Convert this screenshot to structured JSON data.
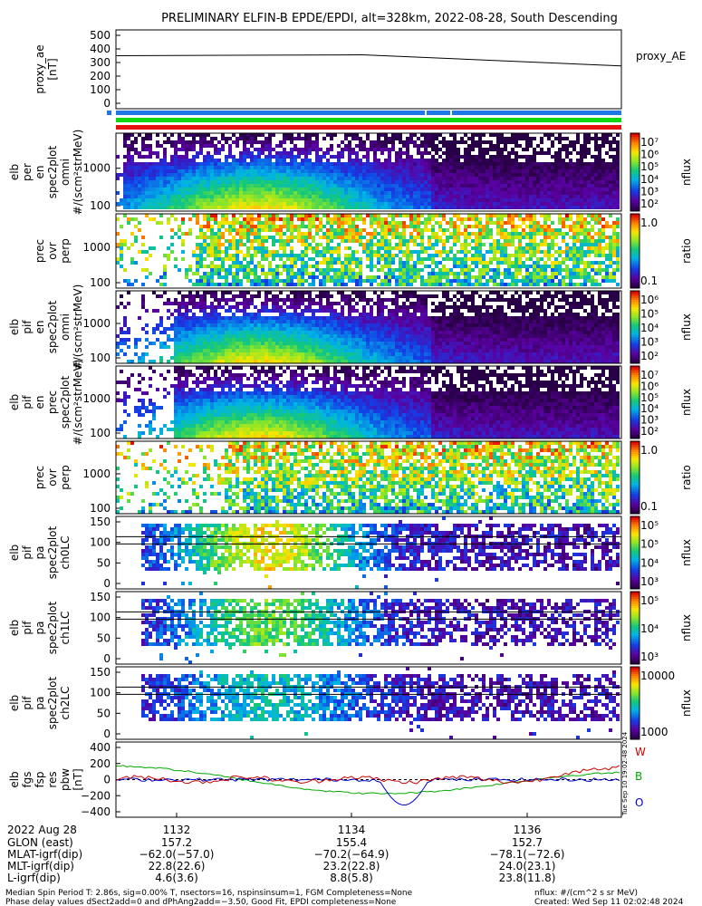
{
  "title": "PRELIMINARY ELFIN-B EPDE/EPDI, alt=328km, 2022-08-28, South Descending",
  "panels": [
    {
      "id": "ae",
      "kind": "line",
      "ylabel": [
        "proxy_ae",
        "[nT]"
      ],
      "ticks": [
        "500",
        "400",
        "300",
        "200",
        "100",
        "0"
      ],
      "tick_values": [
        500,
        400,
        300,
        200,
        100,
        0
      ],
      "legend": "proxy_AE"
    },
    {
      "id": "p1",
      "kind": "spec",
      "ylabel": [
        "elb",
        "per",
        "en",
        "spec2plot",
        "omni",
        "#/(scm²strMeV)"
      ],
      "ticks": [
        "1000",
        "100"
      ],
      "tick_values": [
        1000,
        100
      ],
      "cb_ticks": [
        "10⁷",
        "10⁶",
        "10⁵",
        "10⁴",
        "10³",
        "10²"
      ],
      "cb_label": "nflux"
    },
    {
      "id": "p2",
      "kind": "spec",
      "ylabel": [
        "prec",
        "ovr",
        "perp"
      ],
      "ticks": [
        "1000",
        "100"
      ],
      "tick_values": [
        1000,
        100
      ],
      "cb_ticks": [
        "1.0",
        "0.1"
      ],
      "cb_label": "ratio"
    },
    {
      "id": "p3",
      "kind": "spec",
      "ylabel": [
        "elb",
        "pif",
        "en",
        "spec2plot",
        "omni",
        "#/(scm²strMeV)"
      ],
      "ticks": [
        "1000",
        "100"
      ],
      "tick_values": [
        1000,
        100
      ],
      "cb_ticks": [
        "10⁶",
        "10⁵",
        "10⁴",
        "10³",
        "10²"
      ],
      "cb_label": "nflux"
    },
    {
      "id": "p4",
      "kind": "spec",
      "ylabel": [
        "elb",
        "pif",
        "en",
        "prec",
        "spec2plot",
        "#/(scm²strMeV)"
      ],
      "ticks": [
        "1000",
        "100"
      ],
      "tick_values": [
        1000,
        100
      ],
      "cb_ticks": [
        "10⁷",
        "10⁶",
        "10⁵",
        "10⁴",
        "10³",
        "10²"
      ],
      "cb_label": "nflux"
    },
    {
      "id": "p5",
      "kind": "spec",
      "ylabel": [
        "prec",
        "ovr",
        "perp"
      ],
      "ticks": [
        "1000",
        "100"
      ],
      "tick_values": [
        1000,
        100
      ],
      "cb_ticks": [
        "1.0",
        "0.1"
      ],
      "cb_label": "ratio"
    },
    {
      "id": "p6",
      "kind": "pa",
      "ylabel": [
        "elb",
        "pif",
        "pa",
        "spec2plot",
        "ch0LC"
      ],
      "ticks": [
        "150",
        "100",
        "50",
        "0"
      ],
      "tick_values": [
        150,
        100,
        50,
        0
      ],
      "cb_ticks": [
        "10⁵",
        "10⁵",
        "10⁴",
        "10³"
      ],
      "cb_label": "nflux"
    },
    {
      "id": "p7",
      "kind": "pa",
      "ylabel": [
        "elb",
        "pif",
        "pa",
        "spec2plot",
        "ch1LC"
      ],
      "ticks": [
        "150",
        "100",
        "50",
        "0"
      ],
      "tick_values": [
        150,
        100,
        50,
        0
      ],
      "cb_ticks": [
        "10⁵",
        "10⁴",
        "10³"
      ],
      "cb_label": "nflux"
    },
    {
      "id": "p8",
      "kind": "pa",
      "ylabel": [
        "elb",
        "pif",
        "pa",
        "spec2plot",
        "ch2LC"
      ],
      "ticks": [
        "150",
        "100",
        "50",
        "0"
      ],
      "tick_values": [
        150,
        100,
        50,
        0
      ],
      "cb_ticks": [
        "10000",
        "1000"
      ],
      "cb_label": "nflux"
    },
    {
      "id": "p9",
      "kind": "lines",
      "ylabel": [
        "elb",
        "fgs",
        "fsp",
        "res",
        "pbw",
        "[nT]"
      ],
      "ticks": [
        "400",
        "200",
        "0",
        "−200",
        "−400"
      ],
      "tick_values": [
        400,
        200,
        0,
        -200,
        -400
      ],
      "legend_w": "W",
      "legend_b": "B",
      "legend_o": "O"
    }
  ],
  "xaxis": {
    "date": "2022 Aug 28",
    "tick_labels": [
      "1132",
      "1134",
      "1136"
    ],
    "rows": [
      {
        "label": "GLON (east)",
        "values": [
          "157.2",
          "155.4",
          "152.7"
        ]
      },
      {
        "label": "MLAT-igrf(dip)",
        "values": [
          "−62.0(−57.0)",
          "−70.2(−64.9)",
          "−78.1(−72.6)"
        ]
      },
      {
        "label": "MLT-igrf(dip)",
        "values": [
          "22.8(22.6)",
          "23.2(22.8)",
          "24.0(23.1)"
        ]
      },
      {
        "label": "L-igrf(dip)",
        "values": [
          "4.6(3.6)",
          "8.8(5.8)",
          "23.8(11.8)"
        ]
      }
    ]
  },
  "footer": {
    "line1": "Median Spin Period T: 2.86s, sig=0.00% T, nsectors=16, nspinsinsum=1, FGM Completeness=None",
    "line2": "Phase delay values dSect2add=0 and dPhAng2add=−3.50, Good Fit, EPDI completeness=None",
    "units": "nflux: #/(cm^2 s sr MeV)",
    "created": "Created: Wed Sep 11 02:02:48 2024",
    "side_stamp": "Tue Sep 10 19:02:48 2024"
  },
  "chart_data": {
    "type": "line",
    "title": "PRELIMINARY ELFIN-B EPDE/EPDI, alt=328km, 2022-08-28, South Descending",
    "x_ticks": [
      "1132",
      "1134",
      "1136"
    ],
    "series": [
      {
        "name": "proxy_AE",
        "x": [
          "1131.0",
          "1134.0",
          "1137.0"
        ],
        "y": [
          350,
          330,
          275
        ]
      }
    ],
    "ylim": [
      0,
      500
    ],
    "pbw_ylim": [
      -400,
      400
    ],
    "pbw_series": [
      {
        "name": "W",
        "color": "#cc0000"
      },
      {
        "name": "B",
        "color": "#00aa00"
      },
      {
        "name": "O",
        "color": "#0000cc"
      }
    ]
  }
}
